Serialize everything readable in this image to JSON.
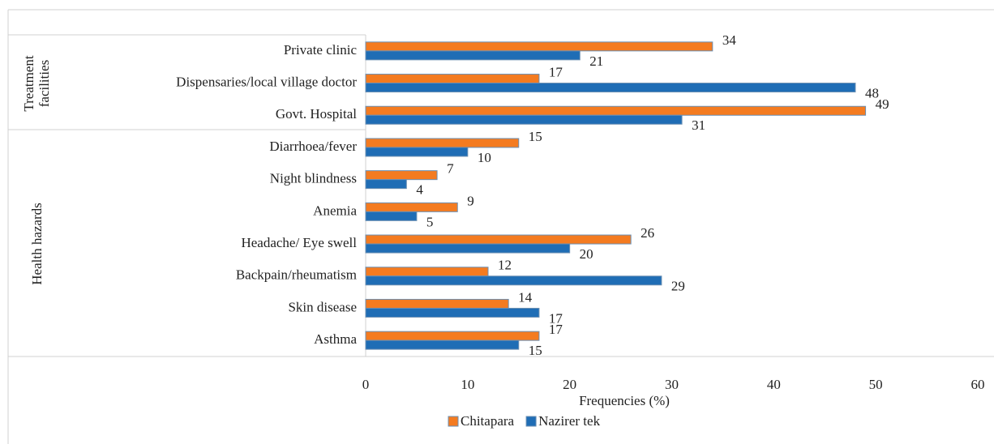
{
  "chart_data": {
    "type": "bar",
    "orientation": "horizontal",
    "categories": [
      "Private clinic",
      "Dispensaries/local village doctor",
      "Govt. Hospital",
      "Diarrhoea/fever",
      "Night blindness",
      "Anemia",
      "Headache/ Eye swell",
      "Backpain/rheumatism",
      "Skin disease",
      "Asthma"
    ],
    "groups": [
      {
        "label": "Treatment facilities",
        "categories": [
          "Private clinic",
          "Dispensaries/local village doctor",
          "Govt. Hospital"
        ]
      },
      {
        "label": "Health hazards",
        "categories": [
          "Diarrhoea/fever",
          "Night blindness",
          "Anemia",
          "Headache/ Eye swell",
          "Backpain/rheumatism",
          "Skin disease",
          "Asthma"
        ]
      }
    ],
    "series": [
      {
        "name": "Chitapara",
        "color": "#f47b20",
        "values": [
          34,
          17,
          49,
          15,
          7,
          9,
          26,
          12,
          14,
          17
        ]
      },
      {
        "name": "Nazirer tek",
        "color": "#1f6db5",
        "values": [
          21,
          48,
          31,
          10,
          4,
          5,
          20,
          29,
          17,
          15
        ]
      }
    ],
    "x_label": "Frequencies (%)",
    "xlim": [
      0,
      60
    ],
    "xticks": [
      0,
      10,
      20,
      30,
      40,
      50,
      60
    ],
    "legend": "bottom"
  }
}
